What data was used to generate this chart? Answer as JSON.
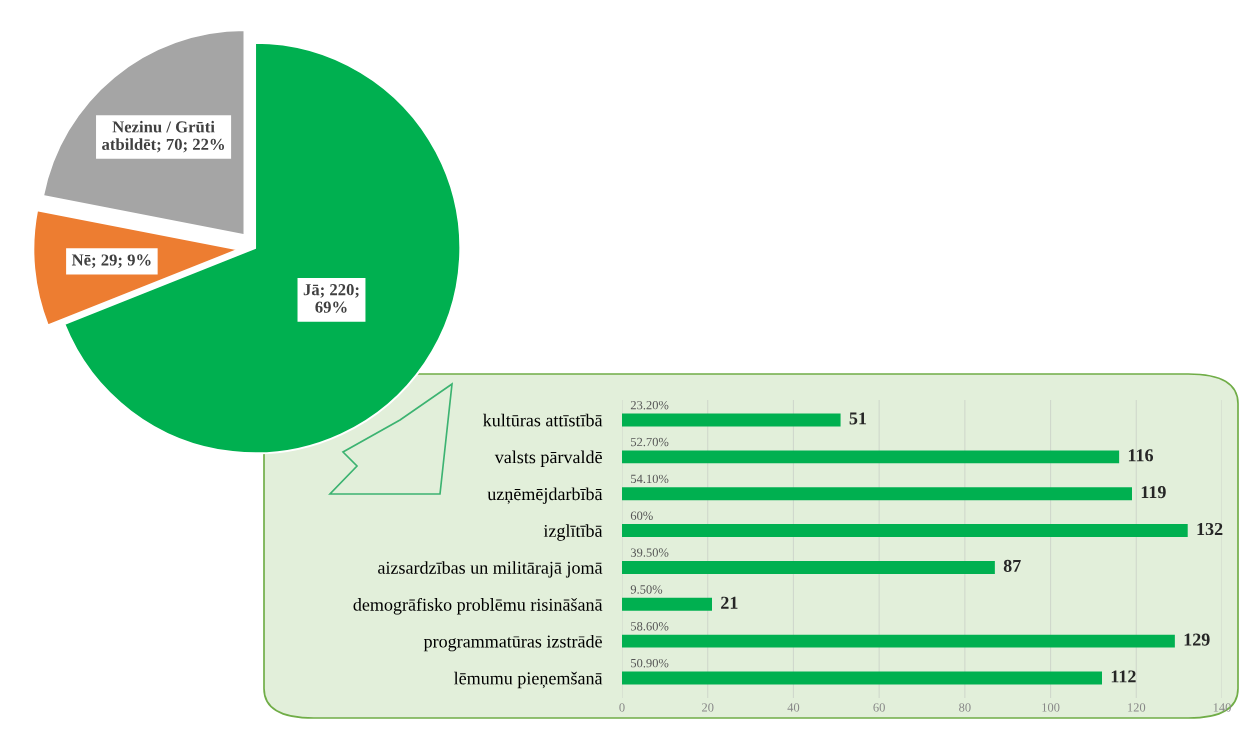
{
  "chart_data": [
    {
      "type": "pie",
      "categories": [
        "Jā",
        "Nē",
        "Nezinu / Grūti\natbildēt"
      ],
      "values": [
        220,
        29,
        70
      ],
      "colors": [
        "#00b050",
        "#ed7d31",
        "#a5a5a5"
      ],
      "value_labels": [
        "220;\n69%",
        "29; 9%",
        "70; 22%"
      ]
    },
    {
      "type": "bar",
      "orientation": "horizontal",
      "categories": [
        "kultūras attīstībā",
        "valsts pārvaldē",
        "uzņēmējdarbībā",
        "izglītībā",
        "aizsardzības un militārajā jomā",
        "demogrāfisko problēmu risināšanā",
        "programmatūras izstrādē",
        "lēmumu pieņemšanā"
      ],
      "values": [
        51,
        116,
        119,
        132,
        87,
        21,
        129,
        112
      ],
      "color": "#00b050",
      "data_labels": true,
      "xlim": [
        0,
        140
      ],
      "xticks": [
        0,
        20,
        40,
        60,
        80,
        100,
        120,
        140
      ],
      "grid": "x",
      "annotations": [
        "23.20%",
        "52.70%",
        "54.10%",
        "60%",
        "39.50%",
        "9.50%",
        "58.60%",
        "50.90%"
      ]
    }
  ]
}
